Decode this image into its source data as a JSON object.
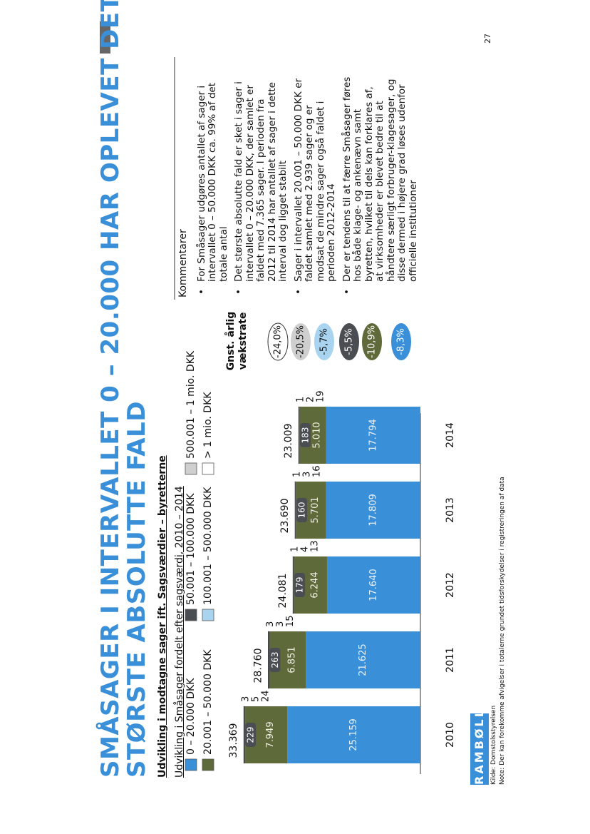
{
  "title": [
    "SMÅSAGER I INTERVALLET 0 – 20.000 HAR OPLEVET DET",
    "STØRSTE ABSOLUTTE FALD"
  ],
  "chart_data": {
    "type": "stacked_bar",
    "title": "Udvikling i modtagne sager ift. Sagsværdier – byretterne",
    "subtitle": "Udvikling i Småsager fordelt efter sagsværdi, 2010 – 2014",
    "categories": [
      "2010",
      "2011",
      "2012",
      "2013",
      "2014"
    ],
    "series": [
      {
        "name": "0 – 20.000 DKK",
        "color": "#3a8fd9",
        "values": [
          25159,
          21625,
          17640,
          17809,
          17794
        ],
        "value_labels": [
          "25.159",
          "21.625",
          "17.640",
          "17.809",
          "17.794"
        ]
      },
      {
        "name": "20.001 – 50.000 DKK",
        "color": "#5f6a3a",
        "values": [
          7949,
          6851,
          6244,
          5701,
          5010
        ],
        "value_labels": [
          "7.949",
          "6.851",
          "6.244",
          "5.701",
          "5.010"
        ]
      },
      {
        "name": "50.001 – 100.000 DKK",
        "color": "#4a4d52",
        "values": [
          229,
          263,
          179,
          160,
          183
        ]
      },
      {
        "name": "100.001 – 500.000 DKK",
        "color": "#a9d4f0",
        "values": [
          24,
          15,
          13,
          16,
          19
        ]
      },
      {
        "name": "500.001 – 1 mio. DKK",
        "color": "#cfcfcf",
        "values": [
          5,
          3,
          4,
          3,
          2
        ]
      },
      {
        "name": "> 1 mio. DKK",
        "color": "#ffffff",
        "values": [
          3,
          3,
          1,
          1,
          1
        ]
      }
    ],
    "totals": {
      "values": [
        33369,
        28760,
        24081,
        23690,
        23009
      ],
      "value_labels": [
        "33.369",
        "28.760",
        "24.081",
        "23.690",
        "23.009"
      ]
    },
    "ylim": [
      0,
      35000
    ]
  },
  "growth": {
    "header": "Gnst. årlig vækstrate",
    "items": [
      {
        "label": "-24,0%",
        "color": "#ffffff"
      },
      {
        "label": "-20,5%",
        "color": "#cfcfcf"
      },
      {
        "label": "-5,7%",
        "color": "#a9d4f0"
      },
      {
        "label": "-5,5%",
        "color": "#4a4d52"
      },
      {
        "label": "-10,9%",
        "color": "#5f6a3a"
      },
      {
        "label": "-8,3%",
        "color": "#3a8fd9"
      }
    ]
  },
  "comments": {
    "header": "Kommentarer",
    "items": [
      "For Småsager udgøres antallet af sager i intervallet 0 – 50.000 DKK ca. 99% af det totale antal",
      "Det største absolutte fald er sket i sager i intervallet 0 – 20.000 DKK, der samlet er faldet med 7.365 sager. I perioden fra 2012 til 2014 har antallet af sager i dette interval dog ligget stabilt",
      "Sager i intervallet 20.001 – 50.000 DKK er faldet samlet med 2.939 sager og er modsat de mindre sager også faldet i perioden 2012-2014",
      "Der er tendens til at færre Småsager føres hos både klage- og ankenævn samt byretten, hvilket til dels kan forklares af, at virksomheder er blevet bedre til at håndtere særligt forbruger-klagesager, og disse dermed i højere grad løses udenfor officielle institutioner"
    ]
  },
  "footer": {
    "logo": "RAMBØLL",
    "source": "Kilde: Domstolsstyrelsen",
    "note": "Note: Der kan forekomme afvigelser i totalerne grundet tidsforskydelser i registreringen af data"
  },
  "page_number": "27"
}
